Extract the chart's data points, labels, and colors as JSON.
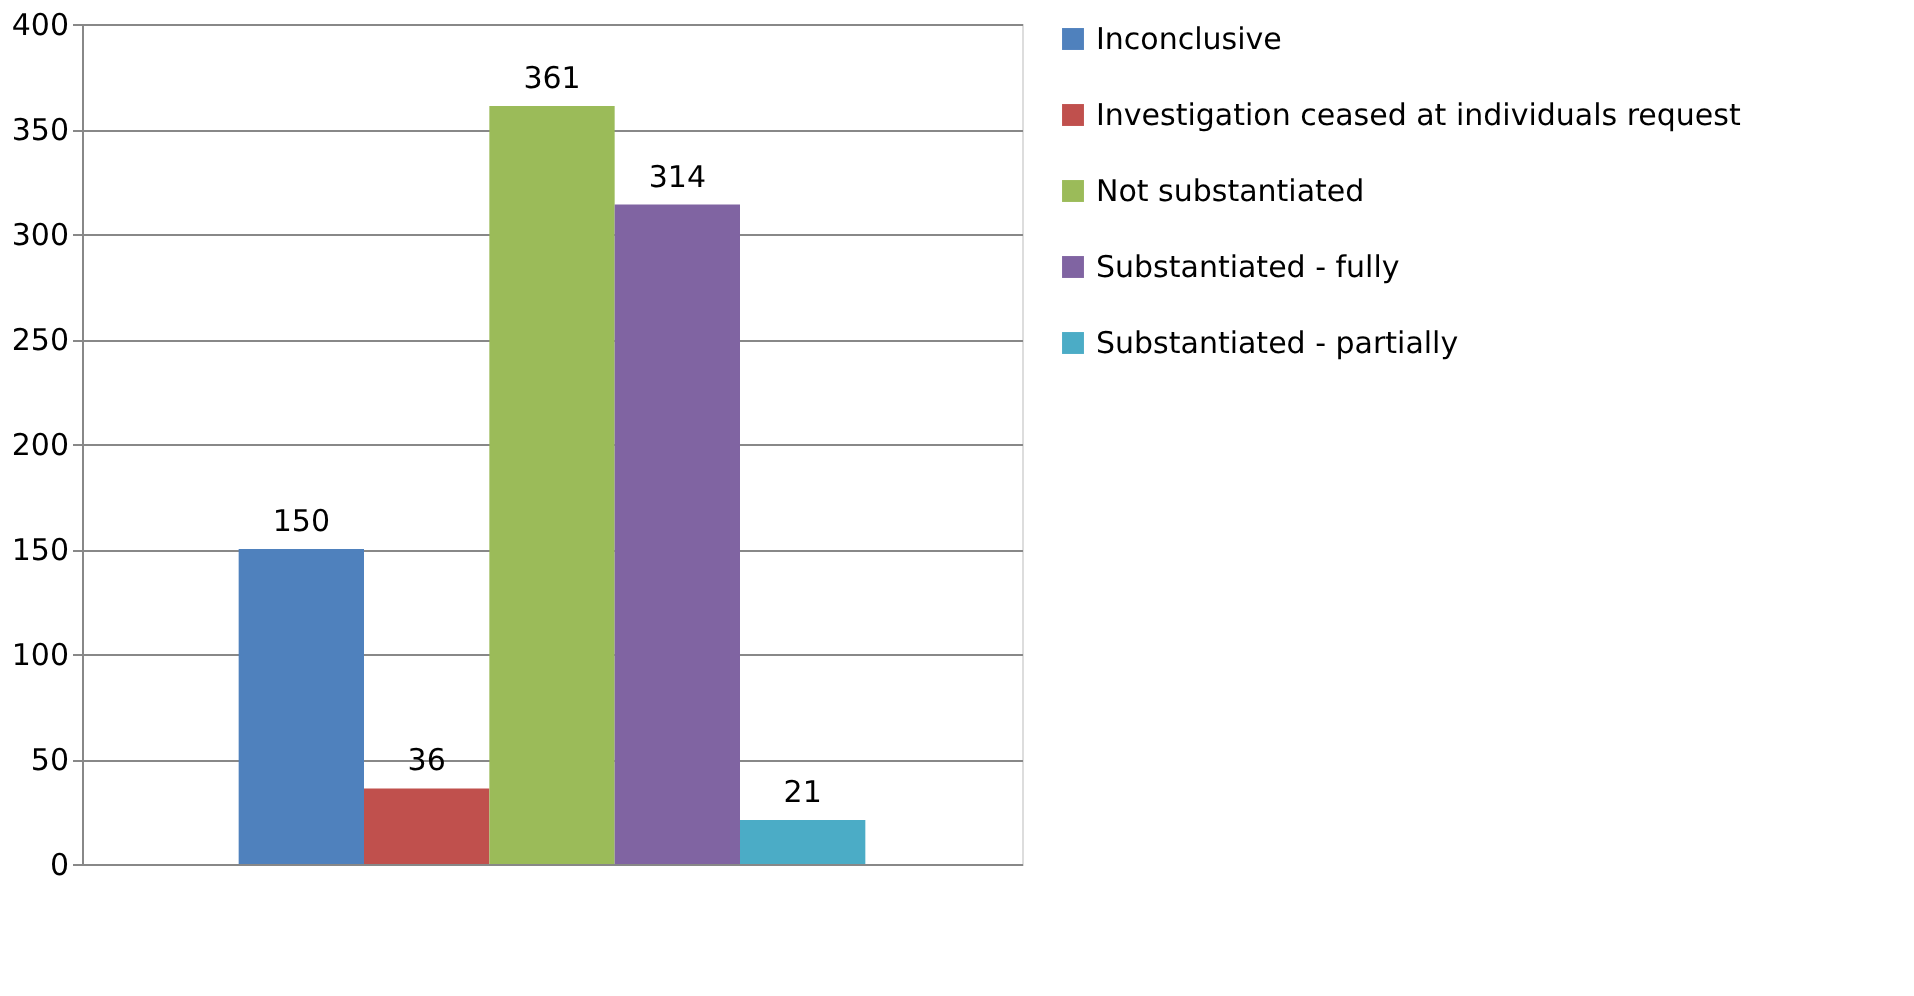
{
  "chart_data": {
    "type": "bar",
    "categories": [
      null
    ],
    "series": [
      {
        "name": "Inconclusive",
        "color": "#4f81bd",
        "values": [
          150
        ]
      },
      {
        "name": "Investigation ceased at individuals request",
        "color": "#c0504d",
        "values": [
          36
        ]
      },
      {
        "name": "Not substantiated",
        "color": "#9bbb59",
        "values": [
          361
        ]
      },
      {
        "name": "Substantiated - fully",
        "color": "#8064a2",
        "values": [
          314
        ]
      },
      {
        "name": "Substantiated - partially",
        "color": "#4bacc6",
        "values": [
          21
        ]
      }
    ],
    "ylim": [
      0,
      400
    ],
    "yticks": [
      0,
      50,
      100,
      150,
      200,
      250,
      300,
      350,
      400
    ],
    "grid": "y",
    "legend": "right",
    "data_labels": true
  }
}
